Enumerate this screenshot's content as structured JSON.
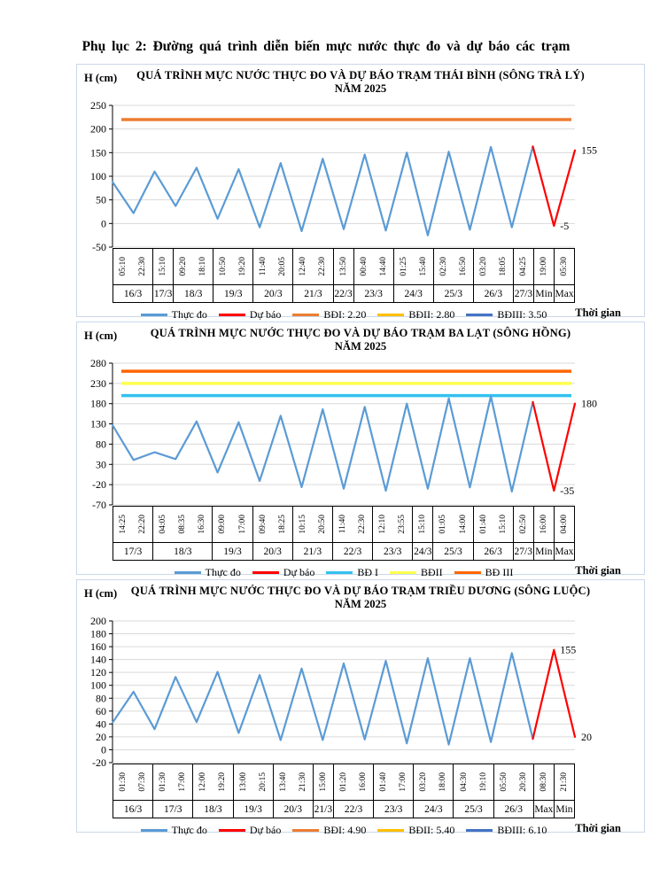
{
  "page": {
    "title": "Phụ lục 2: Đường quá trình diễn biến mực nước thực đo và dự báo các trạm"
  },
  "colors": {
    "observed": "#5B9BD5",
    "forecast": "#FF0000",
    "gridline": "#D9D9D9",
    "axis": "#000000"
  },
  "chart_data": [
    {
      "type": "line",
      "station": "Thái Bình",
      "river": "Sông Trà Lý",
      "title": "QUÁ TRÌNH MỰC NƯỚC THỰC ĐO VÀ DỰ BÁO TRẠM THÁI BÌNH (SÔNG TRÀ LÝ)",
      "subtitle": "NĂM 2025",
      "y_axis_label": "H (cm)",
      "x_axis_label": "Thời gian",
      "y_ticks": [
        250,
        200,
        150,
        100,
        50,
        0,
        -50
      ],
      "x_groups": [
        {
          "date": "16/3",
          "times": [
            "05:10",
            "22:30"
          ]
        },
        {
          "date": "17/3",
          "times": [
            "15:10"
          ]
        },
        {
          "date": "18/3",
          "times": [
            "09:20",
            "18:10"
          ]
        },
        {
          "date": "19/3",
          "times": [
            "10:50",
            "19:20"
          ]
        },
        {
          "date": "20/3",
          "times": [
            "11:40",
            "20:05"
          ]
        },
        {
          "date": "21/3",
          "times": [
            "12:40",
            "22:30"
          ]
        },
        {
          "date": "22/3",
          "times": [
            "13:50"
          ]
        },
        {
          "date": "23/3",
          "times": [
            "00:40",
            "14:40"
          ]
        },
        {
          "date": "24/3",
          "times": [
            "01:25",
            "15:40"
          ]
        },
        {
          "date": "25/3",
          "times": [
            "02:30",
            "16:50"
          ]
        },
        {
          "date": "26/3",
          "times": [
            "03:20",
            "18:05"
          ]
        },
        {
          "date": "27/3",
          "times": [
            "04:25"
          ]
        },
        {
          "date": "Min",
          "times": [
            "19:00"
          ]
        },
        {
          "date": "Max",
          "times": [
            "05:30"
          ]
        }
      ],
      "series": [
        {
          "name": "Thực đo",
          "color": "#5B9BD5",
          "start_index": 0,
          "values": [
            88,
            22,
            110,
            37,
            118,
            10,
            115,
            -8,
            128,
            -16,
            137,
            -12,
            146,
            -15,
            150,
            -25,
            152,
            -13,
            162,
            -8,
            163
          ]
        },
        {
          "name": "Dự báo",
          "color": "#FF0000",
          "start_index": 20,
          "values": [
            163,
            -5,
            155
          ]
        }
      ],
      "alert_lines": [
        {
          "name": "BĐI",
          "value_cm": 220,
          "color": "#ED7D31"
        },
        {
          "name": "BĐII",
          "value_cm": 280,
          "color": "#FFC000"
        },
        {
          "name": "BĐIII",
          "value_cm": 350,
          "color": "#4472C4"
        }
      ],
      "legend": [
        {
          "label": "Thực đo",
          "color": "#5B9BD5"
        },
        {
          "label": "Dự báo",
          "color": "#FF0000"
        },
        {
          "label": "BĐI: 2.20",
          "color": "#ED7D31"
        },
        {
          "label": "BĐII: 2.80",
          "color": "#FFC000"
        },
        {
          "label": "BĐIII: 3.50",
          "color": "#4472C4"
        }
      ],
      "annotations": [
        {
          "text": "155",
          "index": 22,
          "value": 155
        },
        {
          "text": "-5",
          "index": 21,
          "value": -5
        }
      ]
    },
    {
      "type": "line",
      "station": "Ba Lạt",
      "river": "Sông Hồng",
      "title": "QUÁ TRÌNH MỰC NƯỚC THỰC ĐO VÀ DỰ BÁO TRẠM BA LẠT (SÔNG HỒNG)",
      "subtitle": "NĂM 2025",
      "y_axis_label": "H (cm)",
      "x_axis_label": "Thời gian",
      "y_ticks": [
        280,
        230,
        180,
        130,
        80,
        30,
        -20,
        -70
      ],
      "x_groups": [
        {
          "date": "17/3",
          "times": [
            "14:25",
            "22:20"
          ]
        },
        {
          "date": "18/3",
          "times": [
            "04:05",
            "08:35",
            "16:30"
          ]
        },
        {
          "date": "19/3",
          "times": [
            "09:00",
            "17:00"
          ]
        },
        {
          "date": "20/3",
          "times": [
            "09:40",
            "18:25"
          ]
        },
        {
          "date": "21/3",
          "times": [
            "10:15",
            "20:50"
          ]
        },
        {
          "date": "22/3",
          "times": [
            "11:40",
            "22:30"
          ]
        },
        {
          "date": "23/3",
          "times": [
            "12:10",
            "23:55"
          ]
        },
        {
          "date": "24/3",
          "times": [
            "15:10"
          ]
        },
        {
          "date": "25/3",
          "times": [
            "01:05",
            "14:00"
          ]
        },
        {
          "date": "26/3",
          "times": [
            "01:40",
            "15:10"
          ]
        },
        {
          "date": "27/3",
          "times": [
            "02:50"
          ]
        },
        {
          "date": "Min",
          "times": [
            "16:00"
          ]
        },
        {
          "date": "Max",
          "times": [
            "04:00"
          ]
        }
      ],
      "series": [
        {
          "name": "Thực đo",
          "color": "#5B9BD5",
          "start_index": 0,
          "values": [
            127,
            41,
            60,
            43,
            136,
            10,
            134,
            -11,
            150,
            -26,
            166,
            -30,
            172,
            -35,
            180,
            -30,
            193,
            -27,
            198,
            -37,
            184
          ]
        },
        {
          "name": "Dự báo",
          "color": "#FF0000",
          "start_index": 20,
          "values": [
            184,
            -35,
            180
          ]
        }
      ],
      "alert_lines": [
        {
          "name": "BĐ I",
          "value_cm": 200,
          "color": "#33C1F0"
        },
        {
          "name": "BĐII",
          "value_cm": 230,
          "color": "#FFFF4D"
        },
        {
          "name": "BĐ III",
          "value_cm": 260,
          "color": "#FF6600"
        }
      ],
      "legend": [
        {
          "label": "Thực đo",
          "color": "#5B9BD5"
        },
        {
          "label": "Dự báo",
          "color": "#FF0000"
        },
        {
          "label": "BĐ I",
          "color": "#33C1F0"
        },
        {
          "label": "BĐII",
          "color": "#FFFF4D"
        },
        {
          "label": "BĐ III",
          "color": "#FF6600"
        }
      ],
      "annotations": [
        {
          "text": "180",
          "index": 22,
          "value": 180
        },
        {
          "text": "-35",
          "index": 21,
          "value": -35
        }
      ]
    },
    {
      "type": "line",
      "station": "Triều Dương",
      "river": "Sông Luộc",
      "title": "QUÁ TRÌNH MỰC NƯỚC THỰC ĐO VÀ DỰ BÁO TRẠM TRIỀU DƯƠNG (SÔNG LUỘC)",
      "subtitle": "NĂM 2025",
      "y_axis_label": "H (cm)",
      "x_axis_label": "Thời gian",
      "y_ticks": [
        200,
        180,
        160,
        140,
        120,
        100,
        80,
        60,
        40,
        20,
        0,
        -20
      ],
      "x_groups": [
        {
          "date": "16/3",
          "times": [
            "01:30",
            "07:30"
          ]
        },
        {
          "date": "17/3",
          "times": [
            "01:30",
            "17:00"
          ]
        },
        {
          "date": "18/3",
          "times": [
            "12:00",
            "19:20"
          ]
        },
        {
          "date": "19/3",
          "times": [
            "13:00",
            "20:15"
          ]
        },
        {
          "date": "20/3",
          "times": [
            "13:40",
            "21:30"
          ]
        },
        {
          "date": "21/3",
          "times": [
            "15:00"
          ]
        },
        {
          "date": "22/3",
          "times": [
            "01:20",
            "16:00"
          ]
        },
        {
          "date": "23/3",
          "times": [
            "01:40",
            "17:00"
          ]
        },
        {
          "date": "24/3",
          "times": [
            "03:20",
            "18:00"
          ]
        },
        {
          "date": "25/3",
          "times": [
            "04:30",
            "19:10"
          ]
        },
        {
          "date": "26/3",
          "times": [
            "05:50",
            "20:30"
          ]
        },
        {
          "date": "Max",
          "times": [
            "08:30"
          ]
        },
        {
          "date": "Min",
          "times": [
            "21:30"
          ]
        }
      ],
      "series": [
        {
          "name": "Thực đo",
          "color": "#5B9BD5",
          "start_index": 0,
          "values": [
            42,
            90,
            32,
            113,
            43,
            121,
            26,
            116,
            15,
            126,
            15,
            134,
            16,
            138,
            10,
            142,
            8,
            142,
            12,
            150,
            17
          ]
        },
        {
          "name": "Dự báo",
          "color": "#FF0000",
          "start_index": 20,
          "values": [
            17,
            155,
            20
          ]
        }
      ],
      "alert_lines": [
        {
          "name": "BĐI",
          "value_cm": 490,
          "color": "#ED7D31"
        },
        {
          "name": "BĐII",
          "value_cm": 540,
          "color": "#FFC000"
        },
        {
          "name": "BĐIII",
          "value_cm": 610,
          "color": "#4472C4"
        }
      ],
      "legend": [
        {
          "label": "Thực đo",
          "color": "#5B9BD5"
        },
        {
          "label": "Dự báo",
          "color": "#FF0000"
        },
        {
          "label": "BĐI: 4.90",
          "color": "#ED7D31"
        },
        {
          "label": "BĐII: 5.40",
          "color": "#FFC000"
        },
        {
          "label": "BĐIII: 6.10",
          "color": "#4472C4"
        }
      ],
      "annotations": [
        {
          "text": "155",
          "index": 21,
          "value": 155
        },
        {
          "text": "20",
          "index": 22,
          "value": 20
        }
      ]
    }
  ]
}
